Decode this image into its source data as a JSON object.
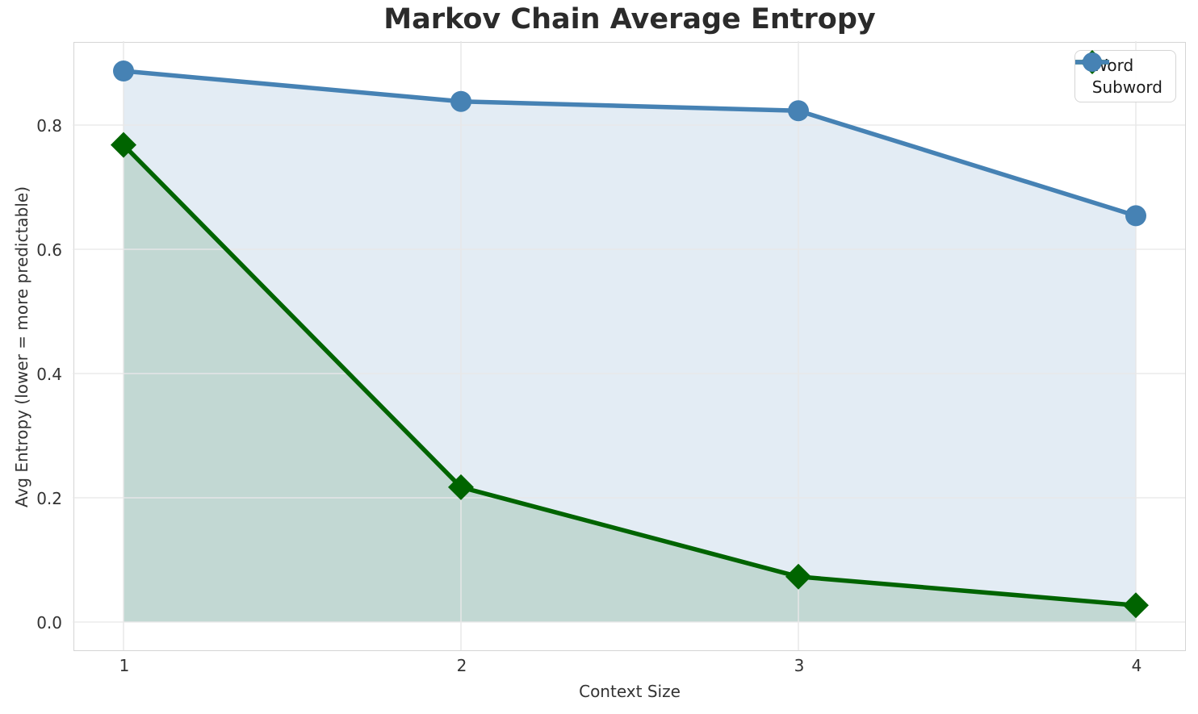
{
  "chart_data": {
    "type": "line",
    "title": "Markov Chain Average Entropy",
    "xlabel": "Context Size",
    "ylabel": "Avg Entropy (lower = more predictable)",
    "x": [
      1,
      2,
      3,
      4
    ],
    "series": [
      {
        "name": "Word",
        "values": [
          0.768,
          0.217,
          0.073,
          0.027
        ],
        "color": "#006400",
        "marker": "diamond"
      },
      {
        "name": "Subword",
        "values": [
          0.887,
          0.838,
          0.823,
          0.654
        ],
        "color": "#4682b4",
        "marker": "circle"
      }
    ],
    "xticks": [
      1,
      2,
      3,
      4
    ],
    "yticks": [
      "0.0",
      "0.2",
      "0.4",
      "0.6",
      "0.8"
    ],
    "xlim": [
      0.85,
      4.15
    ],
    "ylim": [
      -0.045,
      0.935
    ],
    "grid": true,
    "fill_to_zero": true,
    "fill_opacity": 0.15,
    "legend_position": "upper right"
  },
  "colors": {
    "title_text": "#2b2b2b",
    "axis_text": "#333333",
    "grid": "#e8e8e8",
    "spine": "#d5d5d5",
    "legend_border": "#d5d5d5"
  }
}
